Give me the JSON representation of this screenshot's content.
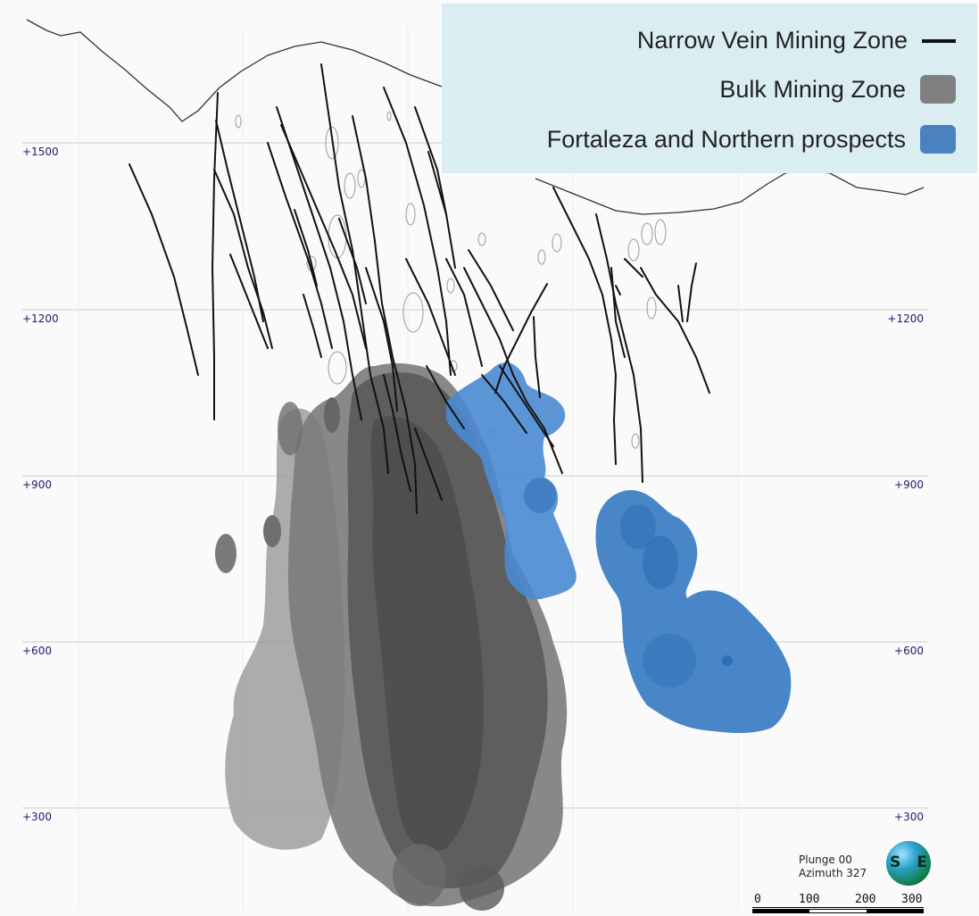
{
  "legend": {
    "items": [
      {
        "label": "Narrow Vein Mining Zone",
        "swatch": "line",
        "color": "#111111"
      },
      {
        "label": "Bulk Mining Zone",
        "swatch": "box",
        "color": "#808080"
      },
      {
        "label": "Fortaleza and Northern prospects",
        "swatch": "box",
        "color": "#4a82c0"
      }
    ]
  },
  "elevations": {
    "left": [
      "+1500",
      "+1200",
      "+900",
      "+600",
      "+300"
    ],
    "right": [
      "+1200",
      "+900",
      "+600",
      "+300"
    ]
  },
  "view": {
    "plunge": "Plunge 00",
    "azimuth": "Azimuth 327",
    "compass_left": "S",
    "compass_right": "E"
  },
  "scale": {
    "ticks": [
      "0",
      "100",
      "200",
      "300"
    ]
  },
  "colors": {
    "bulk_zone": "#585858",
    "prospects": "#3f7fc4",
    "veins": "#111111",
    "grid": "#c9c9c9",
    "legend_bg": "#daeef1"
  }
}
